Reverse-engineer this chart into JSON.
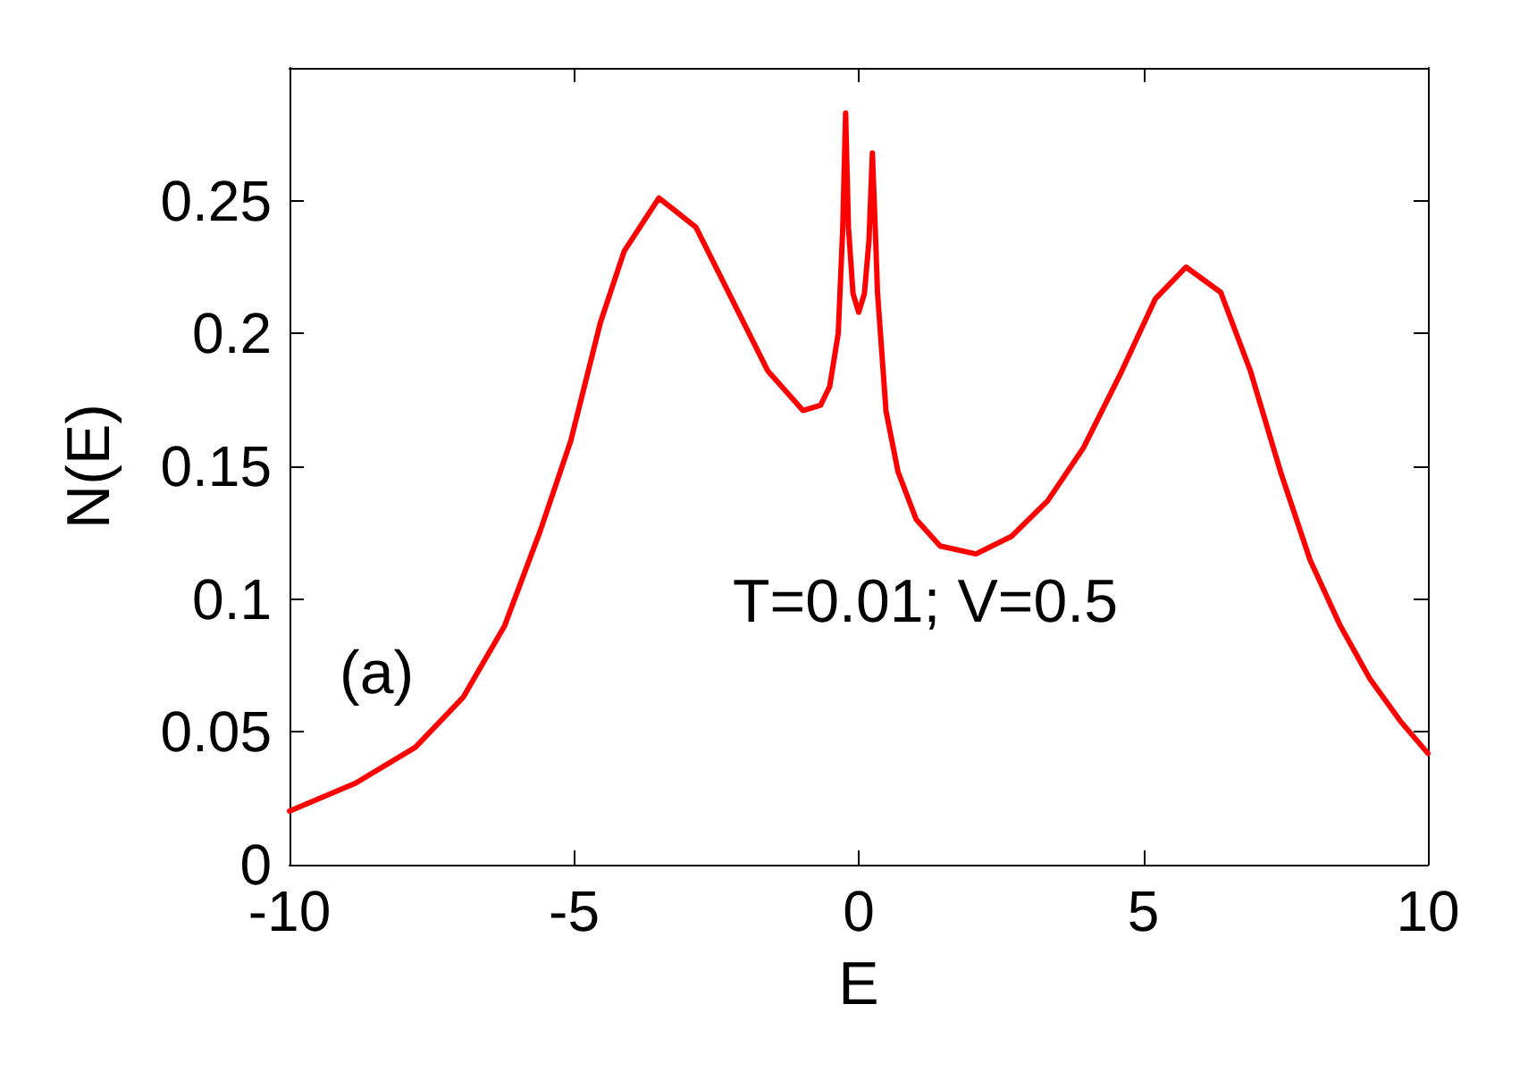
{
  "chart_data": {
    "type": "line",
    "xlabel": "E",
    "ylabel": "N(E)",
    "annotations": [
      "(a)",
      "T=0.01; V=0.5"
    ],
    "xlim": [
      -10,
      10
    ],
    "xticks": [
      -10,
      -5,
      0,
      5,
      10
    ],
    "ylim": [
      0,
      0.3
    ],
    "yticks": [
      0,
      0.05,
      0.1,
      0.15,
      0.2,
      0.25
    ],
    "grid": false,
    "marker": "none",
    "line_style": "solid",
    "series": [
      {
        "color": "#ff0000",
        "x": [
          -10,
          -8.84,
          -7.79,
          -6.95,
          -6.22,
          -5.59,
          -5.06,
          -4.54,
          -4.12,
          -3.51,
          -2.86,
          -2.23,
          -1.6,
          -0.98,
          -0.67,
          -0.51,
          -0.36,
          -0.28,
          -0.23,
          -0.18,
          -0.1,
          0,
          0.1,
          0.18,
          0.24,
          0.29,
          0.33,
          0.48,
          0.69,
          1.01,
          1.43,
          2.06,
          2.69,
          3.32,
          3.95,
          4.58,
          5.21,
          5.75,
          6.36,
          6.88,
          7.41,
          7.93,
          8.46,
          8.98,
          9.51,
          10
        ],
        "values": [
          0.0202,
          0.0307,
          0.0442,
          0.063,
          0.09,
          0.126,
          0.1595,
          0.204,
          0.231,
          0.251,
          0.24,
          0.213,
          0.186,
          0.171,
          0.173,
          0.18,
          0.2,
          0.24,
          0.283,
          0.24,
          0.215,
          0.208,
          0.215,
          0.235,
          0.268,
          0.24,
          0.2155,
          0.1707,
          0.148,
          0.13,
          0.12,
          0.117,
          0.1237,
          0.137,
          0.157,
          0.184,
          0.213,
          0.225,
          0.2155,
          0.186,
          0.148,
          0.1147,
          0.09,
          0.07,
          0.0542,
          0.0419
        ]
      }
    ]
  }
}
